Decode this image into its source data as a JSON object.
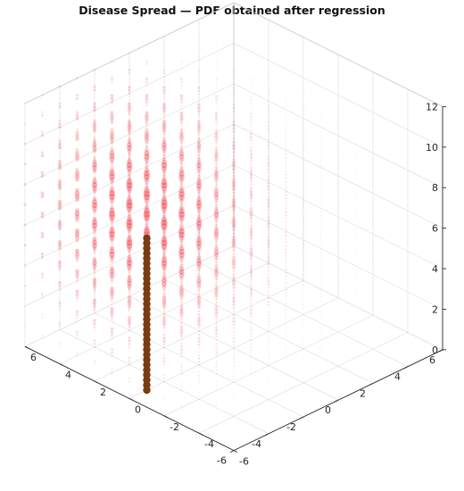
{
  "chart_data": {
    "type": "scatter",
    "title": "Disease Spread — PDF obtained after regression",
    "xlabel": "",
    "ylabel": "",
    "zlabel": "",
    "xlim": [
      -6,
      6
    ],
    "ylim": [
      -6,
      6
    ],
    "zlim": [
      0,
      12
    ],
    "x_ticks": [
      -6,
      -4,
      -2,
      0,
      2,
      4,
      6
    ],
    "y_ticks": [
      -6,
      -4,
      -2,
      0,
      2,
      4,
      6
    ],
    "z_ticks": [
      0,
      2,
      4,
      6,
      8,
      10,
      12
    ],
    "grid": true,
    "legend": "none",
    "series": [
      {
        "kind": "pdf_point_cloud",
        "color": "#f23a45",
        "grid_x": [
          -6,
          6,
          1
        ],
        "grid_y": [
          -6,
          6,
          1
        ],
        "grid_z": [
          0,
          12,
          1
        ],
        "peak_center": [
          2,
          -3,
          7
        ]
      },
      {
        "kind": "vertical_column",
        "color": "#7a3a12",
        "x": 0,
        "y": -5,
        "z": [
          0,
          7.5
        ]
      }
    ]
  },
  "colors": {
    "axis": "#262626",
    "grid": "#dddddd",
    "box": "#c8c8c8"
  }
}
